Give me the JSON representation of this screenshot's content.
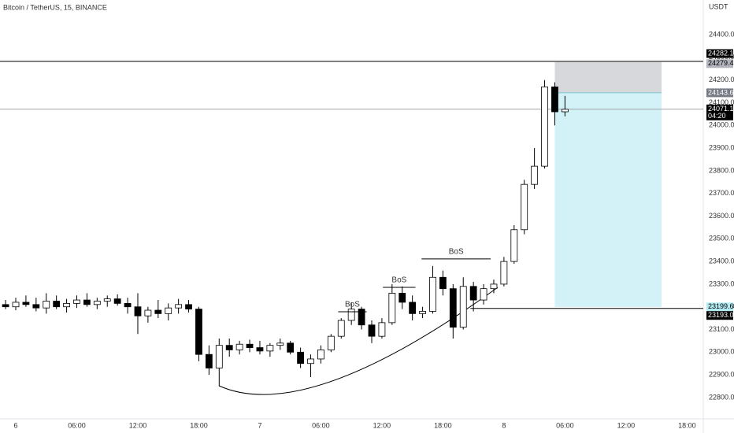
{
  "chart_data": {
    "type": "candlestick",
    "title": "Bitcoin / TetherUS, 15, BINANCE",
    "currency": "USDT",
    "x": [
      -1,
      0,
      1,
      2,
      3,
      4,
      5,
      6,
      7,
      8,
      9,
      10,
      11,
      12,
      13,
      14,
      15,
      16,
      17,
      18,
      19,
      20,
      21,
      22,
      23,
      24,
      25,
      26,
      27,
      28,
      29,
      30,
      31,
      32,
      33,
      34,
      35,
      36,
      37,
      38,
      39,
      40,
      41,
      42,
      43,
      44,
      45,
      46,
      47,
      48,
      49,
      50,
      51,
      52,
      53,
      54
    ],
    "open": [
      23210,
      23200,
      23220,
      23210,
      23195,
      23225,
      23200,
      23215,
      23230,
      23210,
      23225,
      23235,
      23215,
      23200,
      23160,
      23185,
      23170,
      23195,
      23210,
      23190,
      22990,
      22930,
      23030,
      23010,
      23035,
      23020,
      23005,
      23030,
      23040,
      23000,
      22950,
      22970,
      23010,
      23070,
      23140,
      23190,
      23120,
      23070,
      23130,
      23260,
      23220,
      23170,
      23180,
      23330,
      23280,
      23110,
      23290,
      23230,
      23280,
      23300,
      23400,
      23540,
      23740,
      23820,
      24170,
      24060
    ],
    "high": [
      23230,
      23240,
      23250,
      23240,
      23260,
      23250,
      23235,
      23250,
      23260,
      23240,
      23250,
      23255,
      23240,
      23260,
      23200,
      23230,
      23215,
      23235,
      23230,
      23200,
      23030,
      23060,
      23060,
      23050,
      23055,
      23050,
      23040,
      23060,
      23050,
      23020,
      22990,
      23030,
      23080,
      23150,
      23220,
      23200,
      23140,
      23150,
      23300,
      23290,
      23250,
      23200,
      23380,
      23360,
      23300,
      23330,
      23310,
      23300,
      23320,
      23420,
      23560,
      23760,
      23900,
      24200,
      24190,
      24130
    ],
    "low": [
      23190,
      23185,
      23200,
      23180,
      23170,
      23190,
      23175,
      23195,
      23200,
      23190,
      23200,
      23205,
      23170,
      23080,
      23130,
      23150,
      23140,
      23170,
      23175,
      22960,
      22900,
      22850,
      22980,
      22990,
      23000,
      22990,
      22980,
      23010,
      22990,
      22930,
      22890,
      22950,
      23000,
      23060,
      23120,
      23100,
      23040,
      23060,
      23120,
      23190,
      23140,
      23150,
      23170,
      23250,
      23060,
      23100,
      23180,
      23210,
      23260,
      23290,
      23390,
      23520,
      23720,
      23810,
      24000,
      24040
    ],
    "close": [
      23200,
      23220,
      23210,
      23195,
      23225,
      23200,
      23215,
      23230,
      23210,
      23225,
      23235,
      23215,
      23200,
      23160,
      23185,
      23170,
      23195,
      23210,
      23190,
      22990,
      22930,
      23030,
      23010,
      23035,
      23020,
      23005,
      23030,
      23040,
      23000,
      22950,
      22970,
      23010,
      23070,
      23140,
      23190,
      23120,
      23070,
      23130,
      23260,
      23220,
      23170,
      23180,
      23330,
      23280,
      23110,
      23290,
      23230,
      23280,
      23300,
      23400,
      23540,
      23740,
      23820,
      24170,
      24060,
      24071.16
    ],
    "last_price": 24071.16,
    "countdown": "04:20",
    "xlim": [
      -1.55,
      67.6
    ],
    "xticks": [
      {
        "value": 0,
        "label": "6"
      },
      {
        "value": 6,
        "label": "06:00"
      },
      {
        "value": 12,
        "label": "12:00"
      },
      {
        "value": 18,
        "label": "18:00"
      },
      {
        "value": 24,
        "label": "7"
      },
      {
        "value": 30,
        "label": "06:00"
      },
      {
        "value": 36,
        "label": "12:00"
      },
      {
        "value": 42,
        "label": "18:00"
      },
      {
        "value": 48,
        "label": "8"
      },
      {
        "value": 54,
        "label": "06:00"
      },
      {
        "value": 60,
        "label": "12:00"
      },
      {
        "value": 66,
        "label": "18:00"
      }
    ],
    "ylim": [
      22706,
      24553
    ],
    "yticks": [
      {
        "value": 22800,
        "label": "22800.00"
      },
      {
        "value": 22900,
        "label": "22900.00"
      },
      {
        "value": 23000,
        "label": "23000.00"
      },
      {
        "value": 23100,
        "label": "23100.00"
      },
      {
        "value": 23200,
        "label": "23200.00"
      },
      {
        "value": 23300,
        "label": "23300.00"
      },
      {
        "value": 23400,
        "label": "23400.00"
      },
      {
        "value": 23500,
        "label": "23500.00"
      },
      {
        "value": 23600,
        "label": "23600.00"
      },
      {
        "value": 23700,
        "label": "23700.00"
      },
      {
        "value": 23800,
        "label": "23800.00"
      },
      {
        "value": 23900,
        "label": "23900.00"
      },
      {
        "value": 24000,
        "label": "24000.00"
      },
      {
        "value": 24100,
        "label": "24100.00"
      },
      {
        "value": 24200,
        "label": "24200.00"
      },
      {
        "value": 24300,
        "label": "24300.00"
      },
      {
        "value": 24400,
        "label": "24400.00"
      }
    ],
    "hlines": [
      {
        "value": 24282.14,
        "x_from": -1.55
      },
      {
        "value": 23193.08,
        "x_from": 44.7
      }
    ],
    "position": {
      "x": [
        53,
        63.5
      ],
      "stop": 24279.47,
      "entry": 24143.69,
      "target": 23199.67
    },
    "annotations": [
      {
        "text": "BoS",
        "price": 23178,
        "x": [
          31.7,
          34.5
        ]
      },
      {
        "text": "BoS",
        "price": 23286,
        "x": [
          36.1,
          39.3
        ]
      },
      {
        "text": "BoS",
        "price": 23411,
        "x": [
          39.9,
          46.7
        ]
      }
    ]
  }
}
